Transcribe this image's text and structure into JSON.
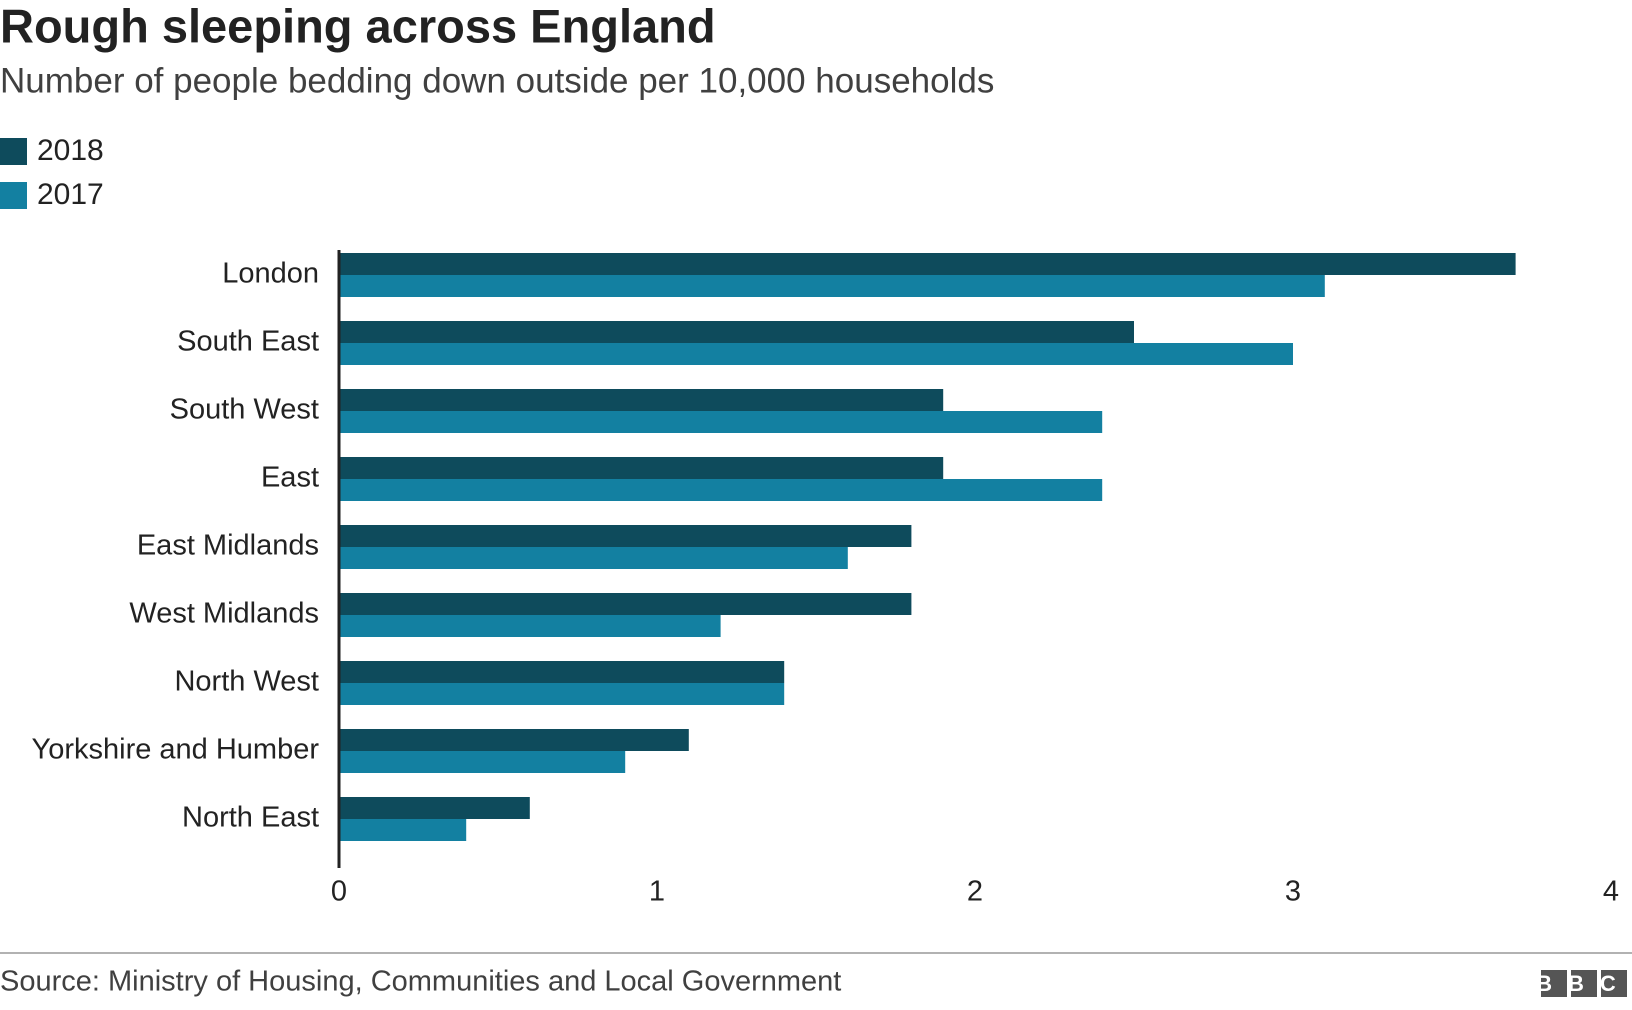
{
  "chart_data": {
    "type": "bar",
    "orientation": "horizontal",
    "title": "Rough sleeping across England",
    "subtitle": "Number of people bedding down outside per 10,000 households",
    "categories": [
      "London",
      "South East",
      "South West",
      "East",
      "East Midlands",
      "West Midlands",
      "North West",
      "Yorkshire and Humber",
      "North East"
    ],
    "series": [
      {
        "name": "2018",
        "color": "#0e4b5c",
        "values": [
          3.7,
          2.5,
          1.9,
          1.9,
          1.8,
          1.8,
          1.4,
          1.1,
          0.6
        ]
      },
      {
        "name": "2017",
        "color": "#1380a1",
        "values": [
          3.1,
          3.0,
          2.4,
          2.4,
          1.6,
          1.2,
          1.4,
          0.9,
          0.4
        ]
      }
    ],
    "xlim": [
      0,
      4
    ],
    "xticks": [
      0,
      1,
      2,
      3,
      4
    ],
    "grid": false,
    "source": "Source: Ministry of Housing, Communities and Local Government",
    "logo": "BBC"
  }
}
